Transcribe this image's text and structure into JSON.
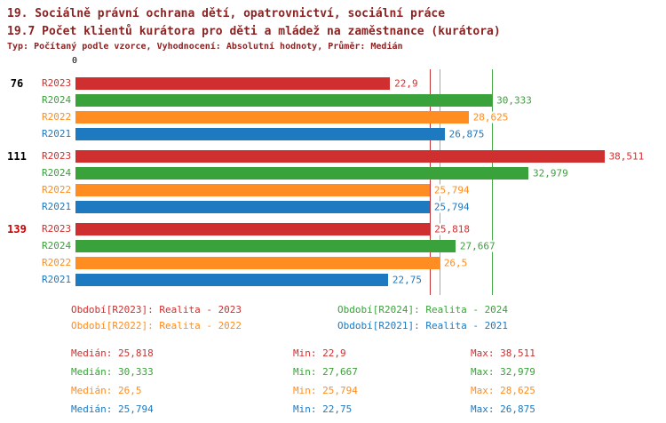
{
  "header": {
    "title_line1": "19. Sociálně právní ochrana dětí, opatrovnictví, sociální práce",
    "title_line2": "19.7 Počet klientů kurátora pro děti a mládež na zaměstnance (kurátora)",
    "subtitle": "Typ: Počítaný podle vzorce, Vyhodnocení: Absolutní hodnoty, Průměr: Medián"
  },
  "colors": {
    "R2023": "#d02f2f",
    "R2024": "#3aa23a",
    "R2022": "#ff8d21",
    "R2021": "#1d79c0",
    "title": "#8b2323",
    "group_label": "#000000",
    "group_label_highlight": "#cc0000"
  },
  "chart_data": {
    "type": "bar",
    "orientation": "horizontal",
    "x_axis": {
      "zero_label": "0",
      "xmin": 0,
      "xmax": 43
    },
    "series_order": [
      "R2023",
      "R2024",
      "R2022",
      "R2021"
    ],
    "groups": [
      {
        "label": "76",
        "highlight": false,
        "bars": [
          {
            "series": "R2023",
            "value": 22.9,
            "display": "22,9"
          },
          {
            "series": "R2024",
            "value": 30.333,
            "display": "30,333"
          },
          {
            "series": "R2022",
            "value": 28.625,
            "display": "28,625"
          },
          {
            "series": "R2021",
            "value": 26.875,
            "display": "26,875"
          }
        ]
      },
      {
        "label": "111",
        "highlight": false,
        "bars": [
          {
            "series": "R2023",
            "value": 38.511,
            "display": "38,511"
          },
          {
            "series": "R2024",
            "value": 32.979,
            "display": "32,979"
          },
          {
            "series": "R2022",
            "value": 25.794,
            "display": "25,794"
          },
          {
            "series": "R2021",
            "value": 25.794,
            "display": "25,794"
          }
        ]
      },
      {
        "label": "139",
        "highlight": true,
        "bars": [
          {
            "series": "R2023",
            "value": 25.818,
            "display": "25,818"
          },
          {
            "series": "R2024",
            "value": 27.667,
            "display": "27,667"
          },
          {
            "series": "R2022",
            "value": 26.5,
            "display": "26,5"
          },
          {
            "series": "R2021",
            "value": 22.75,
            "display": "22,75"
          }
        ]
      }
    ],
    "median_lines": [
      {
        "series": "R2021",
        "value": 25.794
      },
      {
        "series": "R2023",
        "value": 25.818
      },
      {
        "series": "R2022",
        "value": 26.5
      },
      {
        "series": "R2024",
        "value": 30.333
      }
    ]
  },
  "legend": [
    {
      "series": "R2023",
      "label": "Období[R2023]: Realita - 2023"
    },
    {
      "series": "R2024",
      "label": "Období[R2024]: Realita - 2024"
    },
    {
      "series": "R2022",
      "label": "Období[R2022]: Realita - 2022"
    },
    {
      "series": "R2021",
      "label": "Období[R2021]: Realita - 2021"
    }
  ],
  "stats": [
    {
      "series": "R2023",
      "median": "Medián: 25,818",
      "min": "Min: 22,9",
      "max": "Max: 38,511"
    },
    {
      "series": "R2024",
      "median": "Medián: 30,333",
      "min": "Min: 27,667",
      "max": "Max: 32,979"
    },
    {
      "series": "R2022",
      "median": "Medián: 26,5",
      "min": "Min: 25,794",
      "max": "Max: 28,625"
    },
    {
      "series": "R2021",
      "median": "Medián: 25,794",
      "min": "Min: 22,75",
      "max": "Max: 26,875"
    }
  ]
}
